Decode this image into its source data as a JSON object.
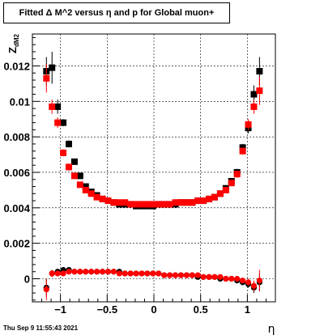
{
  "chart_data": {
    "type": "scatter",
    "title": "Fitted Δ M^2 versus η and p for Global muon+",
    "xlabel": "η",
    "ylabel": "Z",
    "ylabel_sub": "dM2",
    "xlim": [
      -1.3,
      1.3
    ],
    "ylim": [
      -0.0013,
      0.0138
    ],
    "x_ticks": [
      -1,
      -0.5,
      0,
      0.5,
      1
    ],
    "x_tick_labels": [
      "−1",
      "−0.5",
      "0",
      "0.5",
      "1"
    ],
    "y_ticks": [
      0,
      0.002,
      0.004,
      0.006,
      0.008,
      0.01,
      0.012
    ],
    "y_tick_labels": [
      "0",
      "0.002",
      "0.004",
      "0.006",
      "0.008",
      "0.01",
      "0.012"
    ],
    "grid": true,
    "colors": {
      "black_series": "#000000",
      "red_series": "#ff0000"
    },
    "series": [
      {
        "color": "#000000",
        "marker": "square",
        "x": [
          -1.15,
          -1.09,
          -1.03,
          -0.97,
          -0.91,
          -0.85,
          -0.79,
          -0.73,
          -0.67,
          -0.61,
          -0.55,
          -0.49,
          -0.43,
          -0.37,
          -0.31,
          -0.25,
          -0.19,
          -0.13,
          -0.07,
          -0.01,
          0.05,
          0.11,
          0.17,
          0.23,
          0.29,
          0.35,
          0.41,
          0.47,
          0.53,
          0.59,
          0.65,
          0.71,
          0.77,
          0.83,
          0.89,
          0.95,
          1.01,
          1.07,
          1.13
        ],
        "y": [
          0.0117,
          0.0119,
          0.0097,
          0.0088,
          0.0076,
          0.0066,
          0.0058,
          0.0052,
          0.0049,
          0.0047,
          0.0045,
          0.0044,
          0.0043,
          0.0042,
          0.0042,
          0.0042,
          0.0041,
          0.0041,
          0.0041,
          0.0041,
          0.0042,
          0.0042,
          0.0042,
          0.0042,
          0.0043,
          0.0043,
          0.0043,
          0.0044,
          0.0044,
          0.0045,
          0.0046,
          0.0048,
          0.0051,
          0.0055,
          0.006,
          0.0074,
          0.0085,
          0.0104,
          0.0117
        ],
        "err": [
          0.0008,
          0.0009,
          0.0004,
          0.0002,
          0.0002,
          0.0001,
          0.0001,
          0.0001,
          0.0001,
          0.0001,
          0.0001,
          0.0001,
          0.0001,
          0.0001,
          0.0001,
          0.0001,
          0.0001,
          0.0001,
          0.0001,
          0.0001,
          0.0001,
          0.0001,
          0.0001,
          0.0001,
          0.0001,
          0.0001,
          0.0001,
          0.0001,
          0.0001,
          0.0001,
          0.0001,
          0.0001,
          0.0001,
          0.0001,
          0.0002,
          0.0002,
          0.0003,
          0.0005,
          0.0008
        ]
      },
      {
        "color": "#ff0000",
        "marker": "square",
        "x": [
          -1.15,
          -1.09,
          -1.03,
          -0.97,
          -0.91,
          -0.85,
          -0.79,
          -0.73,
          -0.67,
          -0.61,
          -0.55,
          -0.49,
          -0.43,
          -0.37,
          -0.31,
          -0.25,
          -0.19,
          -0.13,
          -0.07,
          -0.01,
          0.05,
          0.11,
          0.17,
          0.23,
          0.29,
          0.35,
          0.41,
          0.47,
          0.53,
          0.59,
          0.65,
          0.71,
          0.77,
          0.83,
          0.89,
          0.95,
          1.01,
          1.07,
          1.13
        ],
        "y": [
          0.0113,
          0.0097,
          0.0088,
          0.0071,
          0.0063,
          0.0058,
          0.0053,
          0.005,
          0.0048,
          0.0046,
          0.0045,
          0.0044,
          0.0043,
          0.0043,
          0.0043,
          0.0042,
          0.0042,
          0.0042,
          0.0042,
          0.0042,
          0.0042,
          0.0042,
          0.0042,
          0.0043,
          0.0043,
          0.0043,
          0.0043,
          0.0044,
          0.0044,
          0.0045,
          0.0046,
          0.0048,
          0.005,
          0.0054,
          0.0059,
          0.0072,
          0.0087,
          0.0097,
          0.0106
        ],
        "err": [
          0.0008,
          0.0004,
          0.0003,
          0.0002,
          0.0002,
          0.0001,
          0.0001,
          0.0001,
          0.0001,
          0.0001,
          0.0001,
          0.0001,
          0.0001,
          0.0001,
          0.0001,
          0.0001,
          0.0001,
          0.0001,
          0.0001,
          0.0001,
          0.0001,
          0.0001,
          0.0001,
          0.0001,
          0.0001,
          0.0001,
          0.0001,
          0.0001,
          0.0001,
          0.0001,
          0.0001,
          0.0001,
          0.0001,
          0.0001,
          0.0002,
          0.0002,
          0.0003,
          0.0004,
          0.0008
        ]
      },
      {
        "color": "#000000",
        "marker": "circle",
        "x": [
          -1.15,
          -1.09,
          -1.03,
          -0.97,
          -0.91,
          -0.85,
          -0.79,
          -0.73,
          -0.67,
          -0.61,
          -0.55,
          -0.49,
          -0.43,
          -0.37,
          -0.31,
          -0.25,
          -0.19,
          -0.13,
          -0.07,
          -0.01,
          0.05,
          0.11,
          0.17,
          0.23,
          0.29,
          0.35,
          0.41,
          0.47,
          0.53,
          0.59,
          0.65,
          0.71,
          0.77,
          0.83,
          0.89,
          0.95,
          1.01,
          1.07,
          1.13
        ],
        "y": [
          -0.0005,
          0.0003,
          0.0004,
          0.0005,
          0.0005,
          0.0004,
          0.0004,
          0.0004,
          0.0004,
          0.0004,
          0.0004,
          0.0004,
          0.0004,
          0.0004,
          0.0003,
          0.0003,
          0.0003,
          0.0003,
          0.0003,
          0.0003,
          0.0003,
          0.0002,
          0.0002,
          0.0002,
          0.0002,
          0.0002,
          0.0002,
          0.0001,
          0.0001,
          0.0001,
          0.0001,
          0.0,
          0.0,
          0.0,
          -0.0001,
          -0.0002,
          -0.0003,
          -0.0005,
          -0.0002
        ],
        "err": [
          0.0005,
          0.0002,
          0.0001,
          0.0001,
          0.0001,
          0.0001,
          0.0001,
          0.0001,
          0.0001,
          0.0001,
          0.0001,
          0.0001,
          0.0001,
          0.0001,
          0.0001,
          0.0001,
          0.0001,
          0.0001,
          0.0001,
          0.0001,
          0.0001,
          0.0001,
          0.0001,
          0.0001,
          0.0001,
          0.0001,
          0.0001,
          0.0001,
          0.0001,
          0.0001,
          0.0001,
          0.0001,
          0.0001,
          0.0001,
          0.0001,
          0.0001,
          0.0002,
          0.0003,
          0.0005
        ]
      },
      {
        "color": "#ff0000",
        "marker": "circle",
        "x": [
          -1.15,
          -1.09,
          -1.03,
          -0.97,
          -0.91,
          -0.85,
          -0.79,
          -0.73,
          -0.67,
          -0.61,
          -0.55,
          -0.49,
          -0.43,
          -0.37,
          -0.31,
          -0.25,
          -0.19,
          -0.13,
          -0.07,
          -0.01,
          0.05,
          0.11,
          0.17,
          0.23,
          0.29,
          0.35,
          0.41,
          0.47,
          0.53,
          0.59,
          0.65,
          0.71,
          0.77,
          0.83,
          0.89,
          0.95,
          1.01,
          1.07,
          1.13
        ],
        "y": [
          -0.0006,
          0.0003,
          0.0003,
          0.0003,
          0.0004,
          0.0004,
          0.0004,
          0.0004,
          0.0004,
          0.0004,
          0.0004,
          0.0004,
          0.0004,
          0.0003,
          0.0003,
          0.0003,
          0.0003,
          0.0003,
          0.0003,
          0.0003,
          0.0003,
          0.0002,
          0.0002,
          0.0002,
          0.0002,
          0.0002,
          0.0002,
          0.0002,
          0.0001,
          0.0001,
          0.0001,
          0.0001,
          0.0,
          0.0,
          0.0,
          -0.0001,
          -0.0002,
          -0.0004,
          -0.0001
        ],
        "err": [
          0.0006,
          0.0002,
          0.0001,
          0.0001,
          0.0001,
          0.0001,
          0.0001,
          0.0001,
          0.0001,
          0.0001,
          0.0001,
          0.0001,
          0.0001,
          0.0001,
          0.0001,
          0.0001,
          0.0001,
          0.0001,
          0.0001,
          0.0001,
          0.0001,
          0.0001,
          0.0001,
          0.0001,
          0.0001,
          0.0001,
          0.0001,
          0.0001,
          0.0001,
          0.0001,
          0.0001,
          0.0001,
          0.0001,
          0.0001,
          0.0001,
          0.0001,
          0.0002,
          0.0003,
          0.0006
        ]
      }
    ]
  },
  "footer": {
    "timestamp": "Thu Sep  9 11:55:43 2021"
  }
}
